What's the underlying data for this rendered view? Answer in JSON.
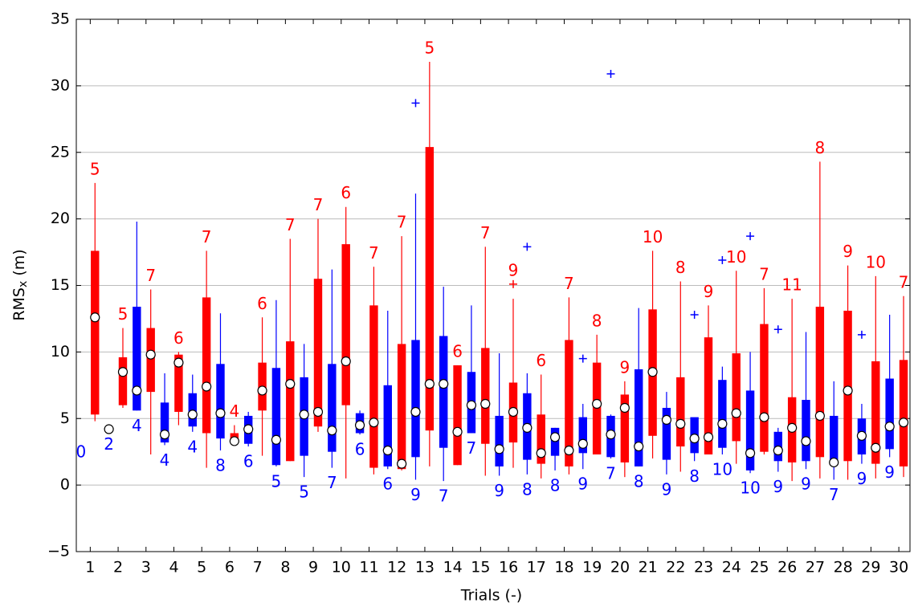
{
  "chart_data": {
    "type": "box",
    "x_label": "Trials (-)",
    "y_label": {
      "main": "RMS",
      "sub": "x",
      "unit": "(m)"
    },
    "x": [
      1,
      2,
      3,
      4,
      5,
      6,
      7,
      8,
      9,
      10,
      11,
      12,
      13,
      14,
      15,
      16,
      17,
      18,
      19,
      20,
      21,
      22,
      23,
      24,
      25,
      26,
      27,
      28,
      29,
      30
    ],
    "xlim": [
      0.5,
      30.4
    ],
    "xticks": [
      1,
      2,
      3,
      4,
      5,
      6,
      7,
      8,
      9,
      10,
      11,
      12,
      13,
      14,
      15,
      16,
      17,
      18,
      19,
      20,
      21,
      22,
      23,
      24,
      25,
      26,
      27,
      28,
      29,
      30
    ],
    "ylim": [
      -5,
      35
    ],
    "yticks": [
      {
        "value": -5,
        "label": "−5"
      },
      0,
      5,
      10,
      15,
      20,
      25,
      30,
      35
    ],
    "grid": true,
    "series": [
      {
        "color": "#0000ff",
        "whislo": [
          null,
          null,
          5.6,
          3.0,
          4.0,
          2.6,
          2.9,
          1.4,
          0.6,
          1.3,
          3.8,
          1.2,
          0.4,
          0.3,
          3.9,
          0.7,
          0.8,
          1.1,
          1.2,
          2.0,
          1.4,
          0.8,
          1.8,
          2.3,
          0.9,
          1.0,
          1.2,
          0.4,
          1.6,
          2.1
        ],
        "q1": [
          null,
          null,
          5.6,
          3.2,
          4.4,
          3.5,
          3.1,
          1.5,
          2.2,
          2.5,
          3.9,
          1.4,
          2.1,
          2.8,
          3.9,
          1.4,
          1.9,
          2.2,
          2.4,
          2.1,
          1.4,
          1.9,
          2.4,
          2.8,
          1.1,
          1.8,
          1.8,
          1.7,
          2.3,
          2.7
        ],
        "median": [
          null,
          4.2,
          7.1,
          3.8,
          5.3,
          5.4,
          4.2,
          3.4,
          5.3,
          4.1,
          4.5,
          2.6,
          5.5,
          7.6,
          6.0,
          2.7,
          4.3,
          3.6,
          3.1,
          3.8,
          2.9,
          4.9,
          3.5,
          4.6,
          2.4,
          2.6,
          3.3,
          1.7,
          3.7,
          4.4
        ],
        "q3": [
          null,
          null,
          13.4,
          6.2,
          6.9,
          9.1,
          5.2,
          8.8,
          8.1,
          9.1,
          5.4,
          7.5,
          10.9,
          11.2,
          8.5,
          5.2,
          6.9,
          4.3,
          5.1,
          5.2,
          8.7,
          5.8,
          5.1,
          7.9,
          7.1,
          4.0,
          6.4,
          5.2,
          5.0,
          8.0
        ],
        "whishi": [
          null,
          null,
          19.8,
          8.4,
          8.3,
          12.9,
          5.5,
          13.9,
          10.6,
          16.2,
          5.6,
          13.1,
          21.9,
          14.9,
          13.5,
          9.9,
          8.4,
          4.3,
          6.1,
          5.3,
          13.3,
          7.0,
          5.0,
          8.9,
          10.0,
          4.3,
          11.5,
          7.8,
          6.1,
          12.8
        ],
        "outliers": [
          [],
          [],
          [],
          [],
          [],
          [],
          [],
          [],
          [],
          [],
          [],
          [],
          [
            28.7
          ],
          [],
          [],
          [],
          [
            17.9
          ],
          [],
          [
            9.5
          ],
          [
            30.9
          ],
          [],
          [],
          [
            12.8
          ],
          [
            16.9
          ],
          [
            18.7
          ],
          [
            11.7
          ],
          [],
          [],
          [
            11.3
          ],
          []
        ],
        "counts": [
          0,
          2,
          4,
          4,
          4,
          8,
          6,
          5,
          5,
          7,
          6,
          6,
          9,
          7,
          7,
          9,
          8,
          8,
          9,
          7,
          8,
          9,
          8,
          10,
          10,
          9,
          9,
          7,
          9,
          9
        ]
      },
      {
        "color": "#ff0000",
        "whislo": [
          4.8,
          5.8,
          2.3,
          4.5,
          1.3,
          3.0,
          2.2,
          1.8,
          4.0,
          0.5,
          0.8,
          1.1,
          1.4,
          1.5,
          0.7,
          1.3,
          0.5,
          0.8,
          2.3,
          0.6,
          2.0,
          1.0,
          2.3,
          1.6,
          2.3,
          0.3,
          0.5,
          0.4,
          0.5,
          0.6
        ],
        "q1": [
          5.3,
          6.0,
          7.0,
          5.5,
          3.9,
          3.5,
          5.6,
          1.8,
          4.4,
          6.0,
          1.3,
          1.2,
          4.1,
          1.5,
          3.1,
          3.2,
          1.6,
          1.4,
          2.3,
          1.7,
          3.7,
          2.9,
          2.3,
          3.3,
          2.5,
          1.7,
          2.1,
          1.8,
          1.6,
          1.4
        ],
        "median": [
          12.6,
          8.5,
          9.8,
          9.2,
          7.4,
          3.3,
          7.1,
          7.6,
          5.5,
          9.3,
          4.7,
          1.6,
          7.6,
          4.0,
          6.1,
          5.5,
          2.4,
          2.6,
          6.1,
          5.8,
          8.5,
          4.6,
          3.6,
          5.4,
          5.1,
          4.3,
          5.2,
          7.1,
          2.8,
          4.7
        ],
        "q3": [
          17.6,
          9.6,
          11.8,
          9.8,
          14.1,
          3.9,
          9.2,
          10.8,
          15.5,
          18.1,
          13.5,
          10.6,
          25.4,
          9.0,
          10.3,
          7.7,
          5.3,
          10.9,
          9.2,
          6.8,
          13.2,
          8.1,
          11.1,
          9.9,
          12.1,
          6.6,
          13.4,
          13.1,
          9.3,
          9.4
        ],
        "whishi": [
          22.7,
          11.8,
          14.7,
          10.0,
          17.6,
          4.5,
          12.6,
          18.5,
          20.0,
          20.9,
          16.4,
          18.7,
          31.8,
          9.0,
          17.9,
          14.0,
          8.3,
          14.1,
          11.3,
          7.8,
          17.6,
          15.3,
          13.5,
          16.1,
          14.8,
          14.0,
          24.3,
          16.5,
          15.7,
          14.2
        ],
        "outliers": [
          [],
          [],
          [],
          [],
          [],
          [],
          [],
          [],
          [],
          [],
          [],
          [],
          [],
          [],
          [],
          [
            15.1
          ],
          [],
          [],
          [],
          [],
          [],
          [],
          [],
          [],
          [],
          [],
          [],
          [],
          [],
          []
        ],
        "counts": [
          5,
          5,
          7,
          6,
          7,
          4,
          6,
          7,
          7,
          6,
          7,
          7,
          5,
          6,
          7,
          9,
          6,
          7,
          8,
          9,
          10,
          8,
          9,
          10,
          7,
          11,
          8,
          9,
          10,
          7
        ]
      }
    ]
  }
}
